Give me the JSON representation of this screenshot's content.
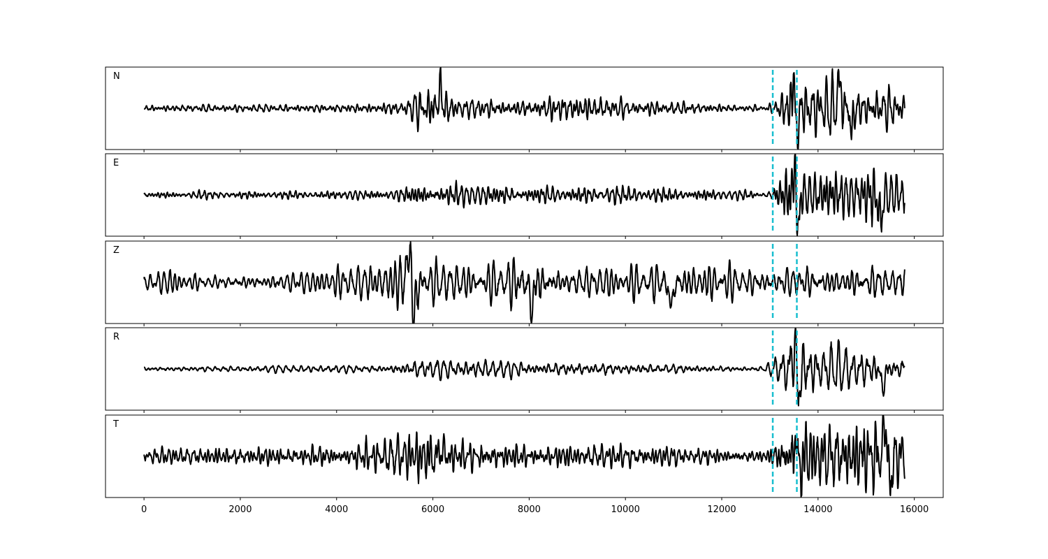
{
  "chart_data": {
    "type": "line",
    "layout": "stacked-subplots",
    "shared_x": true,
    "xlim": [
      -800,
      16600
    ],
    "x_ticks": [
      0,
      2000,
      4000,
      6000,
      8000,
      10000,
      12000,
      14000,
      16000
    ],
    "x_tick_labels": [
      "0",
      "2000",
      "4000",
      "6000",
      "8000",
      "10000",
      "12000",
      "14000",
      "16000"
    ],
    "trace_x_range": [
      0,
      15800
    ],
    "trace_color": "#000000",
    "marker_color": "#17becf",
    "markers": [
      {
        "x": 13060,
        "style": "dashed"
      },
      {
        "x": 13560,
        "style": "dashed"
      }
    ],
    "ylim": [
      -1,
      1
    ],
    "panels": [
      {
        "label": "N",
        "envelope": [
          {
            "x": 0,
            "a": 0.06
          },
          {
            "x": 4000,
            "a": 0.07
          },
          {
            "x": 5400,
            "a": 0.12
          },
          {
            "x": 5800,
            "a": 0.38
          },
          {
            "x": 6100,
            "a": 0.5
          },
          {
            "x": 6400,
            "a": 0.18
          },
          {
            "x": 8000,
            "a": 0.14
          },
          {
            "x": 8800,
            "a": 0.28
          },
          {
            "x": 10000,
            "a": 0.14
          },
          {
            "x": 12900,
            "a": 0.05
          },
          {
            "x": 13200,
            "a": 0.2
          },
          {
            "x": 13500,
            "a": 0.85
          },
          {
            "x": 13700,
            "a": 0.45
          },
          {
            "x": 14400,
            "a": 0.55
          },
          {
            "x": 15000,
            "a": 0.3
          },
          {
            "x": 15600,
            "a": 0.4
          },
          {
            "x": 15800,
            "a": 0.2
          }
        ],
        "spikes": [
          {
            "x": 13500,
            "y": 0.92,
            "w": 40
          },
          {
            "x": 13560,
            "y": -0.95,
            "w": 40
          },
          {
            "x": 14700,
            "y": -0.5,
            "w": 50
          },
          {
            "x": 14440,
            "y": 0.62,
            "w": 50
          },
          {
            "x": 6150,
            "y": 0.58,
            "w": 40
          }
        ]
      },
      {
        "label": "E",
        "envelope": [
          {
            "x": 0,
            "a": 0.06
          },
          {
            "x": 5000,
            "a": 0.08
          },
          {
            "x": 5800,
            "a": 0.22
          },
          {
            "x": 6300,
            "a": 0.2
          },
          {
            "x": 8000,
            "a": 0.16
          },
          {
            "x": 11000,
            "a": 0.14
          },
          {
            "x": 12900,
            "a": 0.05
          },
          {
            "x": 13200,
            "a": 0.35
          },
          {
            "x": 13520,
            "a": 0.8
          },
          {
            "x": 13800,
            "a": 0.5
          },
          {
            "x": 14500,
            "a": 0.45
          },
          {
            "x": 15200,
            "a": 0.55
          },
          {
            "x": 15800,
            "a": 0.35
          }
        ],
        "spikes": [
          {
            "x": 13520,
            "y": 0.86,
            "w": 40
          },
          {
            "x": 13580,
            "y": -0.98,
            "w": 40
          },
          {
            "x": 15300,
            "y": -0.7,
            "w": 50
          }
        ]
      },
      {
        "label": "Z",
        "envelope": [
          {
            "x": 0,
            "a": 0.15
          },
          {
            "x": 500,
            "a": 0.25
          },
          {
            "x": 1200,
            "a": 0.12
          },
          {
            "x": 3500,
            "a": 0.2
          },
          {
            "x": 4200,
            "a": 0.35
          },
          {
            "x": 5200,
            "a": 0.4
          },
          {
            "x": 5500,
            "a": 0.75
          },
          {
            "x": 5800,
            "a": 0.35
          },
          {
            "x": 6200,
            "a": 0.45
          },
          {
            "x": 7000,
            "a": 0.3
          },
          {
            "x": 8000,
            "a": 0.55
          },
          {
            "x": 8600,
            "a": 0.3
          },
          {
            "x": 10000,
            "a": 0.28
          },
          {
            "x": 11000,
            "a": 0.35
          },
          {
            "x": 13000,
            "a": 0.25
          },
          {
            "x": 14000,
            "a": 0.28
          },
          {
            "x": 15800,
            "a": 0.3
          }
        ],
        "spikes": [
          {
            "x": 5500,
            "y": 0.8,
            "w": 50
          },
          {
            "x": 5620,
            "y": -0.88,
            "w": 50
          },
          {
            "x": 8050,
            "y": -0.7,
            "w": 50
          },
          {
            "x": 10950,
            "y": -0.55,
            "w": 60
          }
        ]
      },
      {
        "label": "R",
        "envelope": [
          {
            "x": 0,
            "a": 0.05
          },
          {
            "x": 5000,
            "a": 0.08
          },
          {
            "x": 5800,
            "a": 0.22
          },
          {
            "x": 6300,
            "a": 0.2
          },
          {
            "x": 8000,
            "a": 0.16
          },
          {
            "x": 11000,
            "a": 0.1
          },
          {
            "x": 12900,
            "a": 0.05
          },
          {
            "x": 13200,
            "a": 0.3
          },
          {
            "x": 13520,
            "a": 0.85
          },
          {
            "x": 13800,
            "a": 0.5
          },
          {
            "x": 14600,
            "a": 0.4
          },
          {
            "x": 15200,
            "a": 0.35
          },
          {
            "x": 15800,
            "a": 0.2
          }
        ],
        "spikes": [
          {
            "x": 13520,
            "y": 0.9,
            "w": 40
          },
          {
            "x": 13580,
            "y": -0.95,
            "w": 40
          },
          {
            "x": 15350,
            "y": -0.5,
            "w": 50
          }
        ]
      },
      {
        "label": "T",
        "envelope": [
          {
            "x": 0,
            "a": 0.12
          },
          {
            "x": 1200,
            "a": 0.16
          },
          {
            "x": 4200,
            "a": 0.18
          },
          {
            "x": 5600,
            "a": 0.45
          },
          {
            "x": 6150,
            "a": 0.5
          },
          {
            "x": 6500,
            "a": 0.25
          },
          {
            "x": 8000,
            "a": 0.22
          },
          {
            "x": 10000,
            "a": 0.2
          },
          {
            "x": 12900,
            "a": 0.1
          },
          {
            "x": 13300,
            "a": 0.4
          },
          {
            "x": 13600,
            "a": 0.8
          },
          {
            "x": 14000,
            "a": 0.5
          },
          {
            "x": 14500,
            "a": 0.7
          },
          {
            "x": 15000,
            "a": 0.6
          },
          {
            "x": 15400,
            "a": 0.75
          },
          {
            "x": 15800,
            "a": 0.4
          }
        ],
        "spikes": [
          {
            "x": 6180,
            "y": 0.75,
            "w": 40
          },
          {
            "x": 6180,
            "y": -0.72,
            "w": 30
          },
          {
            "x": 13560,
            "y": 0.8,
            "w": 40
          },
          {
            "x": 13600,
            "y": -0.82,
            "w": 40
          },
          {
            "x": 15400,
            "y": 0.78,
            "w": 50
          },
          {
            "x": 15500,
            "y": -0.75,
            "w": 50
          }
        ]
      }
    ]
  }
}
